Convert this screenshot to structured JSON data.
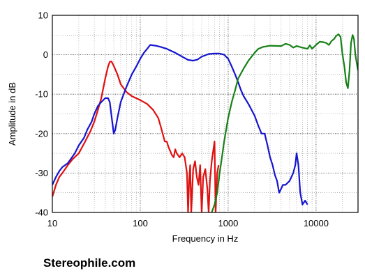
{
  "watermark": "Stereophile.com",
  "chart_data": {
    "type": "line",
    "xlabel": "Frequency in Hz",
    "ylabel": "Amplitude in dB",
    "xscale": "log",
    "xlim": [
      10,
      30000
    ],
    "ylim": [
      -40,
      10
    ],
    "xticks": [
      10,
      100,
      1000,
      10000
    ],
    "xtick_labels": [
      "10",
      "100",
      "1000",
      "10000"
    ],
    "yticks": [
      10,
      0,
      -10,
      -20,
      -30,
      -40
    ],
    "ytick_labels": [
      "10",
      "0",
      "-10",
      "-20",
      "-30",
      "-40"
    ],
    "grid": true,
    "legend": "none",
    "series": [
      {
        "color": "#e01010",
        "points": [
          [
            10,
            -36
          ],
          [
            11,
            -33
          ],
          [
            12,
            -31
          ],
          [
            13,
            -30
          ],
          [
            15,
            -28
          ],
          [
            17,
            -26.5
          ],
          [
            20,
            -25
          ],
          [
            23,
            -22.5
          ],
          [
            27,
            -19.5
          ],
          [
            30,
            -17
          ],
          [
            33,
            -14
          ],
          [
            36,
            -11
          ],
          [
            40,
            -6
          ],
          [
            43,
            -3
          ],
          [
            45,
            -1.8
          ],
          [
            47,
            -1.7
          ],
          [
            50,
            -2.8
          ],
          [
            55,
            -5
          ],
          [
            60,
            -7.5
          ],
          [
            70,
            -9.5
          ],
          [
            80,
            -10.5
          ],
          [
            100,
            -11.5
          ],
          [
            120,
            -12.5
          ],
          [
            140,
            -14
          ],
          [
            160,
            -16
          ],
          [
            170,
            -18
          ],
          [
            180,
            -20
          ],
          [
            190,
            -22
          ],
          [
            200,
            -22
          ],
          [
            210,
            -23.5
          ],
          [
            220,
            -24.5
          ],
          [
            230,
            -25.5
          ],
          [
            240,
            -26
          ],
          [
            250,
            -24
          ],
          [
            260,
            -25
          ],
          [
            280,
            -26
          ],
          [
            300,
            -25
          ],
          [
            320,
            -26
          ],
          [
            340,
            -30
          ],
          [
            350,
            -40
          ],
          [
            360,
            -32
          ],
          [
            370,
            -28
          ],
          [
            380,
            -40
          ],
          [
            400,
            -29
          ],
          [
            420,
            -27
          ],
          [
            440,
            -31
          ],
          [
            460,
            -33
          ],
          [
            480,
            -28
          ],
          [
            500,
            -40
          ],
          [
            520,
            -31
          ],
          [
            550,
            -29
          ],
          [
            580,
            -34
          ],
          [
            600,
            -40
          ],
          [
            620,
            -32
          ],
          [
            650,
            -27
          ],
          [
            680,
            -24
          ],
          [
            700,
            -22
          ],
          [
            720,
            -40
          ],
          [
            750,
            -30
          ],
          [
            780,
            -28
          ]
        ]
      },
      {
        "color": "#1515d0",
        "points": [
          [
            10,
            -33
          ],
          [
            11,
            -31
          ],
          [
            12,
            -29.5
          ],
          [
            13,
            -28.5
          ],
          [
            15,
            -27.5
          ],
          [
            18,
            -25
          ],
          [
            20,
            -23
          ],
          [
            23,
            -21
          ],
          [
            25,
            -19
          ],
          [
            28,
            -17
          ],
          [
            30,
            -15
          ],
          [
            33,
            -13
          ],
          [
            36,
            -12
          ],
          [
            40,
            -11
          ],
          [
            43,
            -11
          ],
          [
            45,
            -12
          ],
          [
            48,
            -17
          ],
          [
            50,
            -20
          ],
          [
            52,
            -19
          ],
          [
            55,
            -16
          ],
          [
            60,
            -12
          ],
          [
            70,
            -8
          ],
          [
            80,
            -5
          ],
          [
            90,
            -3
          ],
          [
            100,
            -1
          ],
          [
            110,
            0.5
          ],
          [
            120,
            1.5
          ],
          [
            130,
            2.5
          ],
          [
            150,
            2.3
          ],
          [
            170,
            2
          ],
          [
            200,
            1.5
          ],
          [
            250,
            0.5
          ],
          [
            300,
            -0.5
          ],
          [
            350,
            -1.3
          ],
          [
            400,
            -1.5
          ],
          [
            450,
            -1.2
          ],
          [
            500,
            -0.5
          ],
          [
            600,
            0.2
          ],
          [
            700,
            0.3
          ],
          [
            800,
            0.3
          ],
          [
            900,
            0
          ],
          [
            1000,
            -1
          ],
          [
            1100,
            -3
          ],
          [
            1200,
            -5
          ],
          [
            1300,
            -7
          ],
          [
            1400,
            -9
          ],
          [
            1500,
            -10.5
          ],
          [
            1700,
            -12.5
          ],
          [
            2000,
            -15.5
          ],
          [
            2200,
            -18
          ],
          [
            2400,
            -20
          ],
          [
            2600,
            -20
          ],
          [
            2800,
            -23
          ],
          [
            3000,
            -26
          ],
          [
            3200,
            -28
          ],
          [
            3400,
            -30.5
          ],
          [
            3600,
            -32
          ],
          [
            3800,
            -35
          ],
          [
            4000,
            -34
          ],
          [
            4200,
            -33
          ],
          [
            4500,
            -33
          ],
          [
            5000,
            -32
          ],
          [
            5500,
            -30
          ],
          [
            5800,
            -28
          ],
          [
            6000,
            -25
          ],
          [
            6300,
            -28
          ],
          [
            6600,
            -35
          ],
          [
            7000,
            -38
          ],
          [
            7500,
            -37
          ],
          [
            8000,
            -38
          ]
        ]
      },
      {
        "color": "#168016",
        "points": [
          [
            650,
            -40
          ],
          [
            700,
            -38
          ],
          [
            750,
            -35
          ],
          [
            800,
            -30
          ],
          [
            850,
            -26
          ],
          [
            900,
            -22
          ],
          [
            1000,
            -16
          ],
          [
            1100,
            -12
          ],
          [
            1200,
            -9
          ],
          [
            1300,
            -6
          ],
          [
            1500,
            -3.5
          ],
          [
            1700,
            -1.5
          ],
          [
            2000,
            0.5
          ],
          [
            2200,
            1.5
          ],
          [
            2500,
            2
          ],
          [
            3000,
            2.3
          ],
          [
            4000,
            2.2
          ],
          [
            4500,
            2.8
          ],
          [
            5000,
            2.5
          ],
          [
            5500,
            1.8
          ],
          [
            6000,
            2.2
          ],
          [
            7000,
            1.8
          ],
          [
            8000,
            1.5
          ],
          [
            8500,
            2.4
          ],
          [
            9000,
            1.5
          ],
          [
            10000,
            2.5
          ],
          [
            11000,
            3.3
          ],
          [
            12000,
            3.2
          ],
          [
            13000,
            3
          ],
          [
            14000,
            2.5
          ],
          [
            15000,
            3.5
          ],
          [
            16000,
            4
          ],
          [
            17000,
            4.8
          ],
          [
            18000,
            5.2
          ],
          [
            19000,
            4.5
          ],
          [
            20000,
            0
          ],
          [
            21000,
            -3
          ],
          [
            22000,
            -7
          ],
          [
            23000,
            -8.5
          ],
          [
            24000,
            -4
          ],
          [
            25000,
            3
          ],
          [
            26000,
            5
          ],
          [
            27000,
            4
          ],
          [
            28000,
            0
          ],
          [
            29000,
            -2
          ],
          [
            30000,
            -4
          ]
        ]
      }
    ]
  }
}
